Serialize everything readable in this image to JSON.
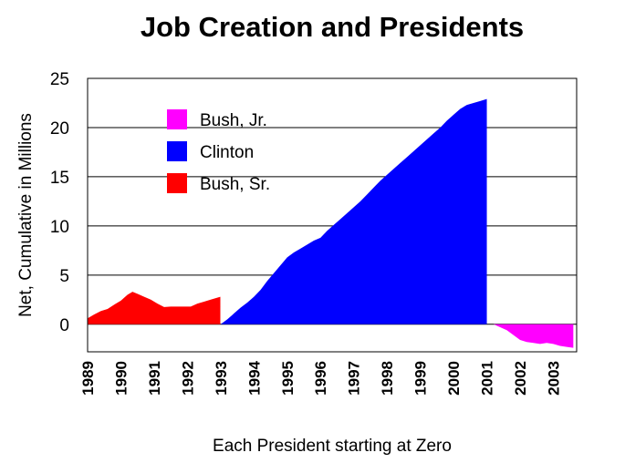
{
  "chart_data": {
    "type": "area",
    "title": "Job Creation and Presidents",
    "xlabel": "Each President starting at Zero",
    "ylabel": "Net, Cumulative in Millions",
    "ylim": [
      -2.8,
      25
    ],
    "xlim": [
      1989,
      2003.7
    ],
    "yticks": [
      0,
      5,
      10,
      15,
      20,
      25
    ],
    "xticks": [
      1989,
      1990,
      1991,
      1992,
      1993,
      1994,
      1995,
      1996,
      1997,
      1998,
      1999,
      2000,
      2001,
      2002,
      2003
    ],
    "grid": "horizontal",
    "legend_position": "top-left",
    "legend": [
      "Bush, Jr.",
      "Clinton",
      "Bush, Sr."
    ],
    "series": [
      {
        "name": "Bush, Sr.",
        "color": "#ff0000",
        "x": [
          1989.0,
          1989.2,
          1989.4,
          1989.6,
          1989.8,
          1990.0,
          1990.2,
          1990.35,
          1990.5,
          1990.7,
          1990.9,
          1991.1,
          1991.3,
          1991.5,
          1991.7,
          1991.9,
          1992.1,
          1992.3,
          1992.5,
          1992.7,
          1992.99
        ],
        "values": [
          0.6,
          1.0,
          1.35,
          1.55,
          2.0,
          2.4,
          3.0,
          3.3,
          3.1,
          2.8,
          2.5,
          2.1,
          1.75,
          1.8,
          1.8,
          1.8,
          1.8,
          2.1,
          2.3,
          2.5,
          2.8
        ]
      },
      {
        "name": "Clinton",
        "color": "#0000ff",
        "x": [
          1993.0,
          1993.2,
          1993.4,
          1993.6,
          1993.8,
          1994.0,
          1994.2,
          1994.4,
          1994.6,
          1994.8,
          1995.0,
          1995.2,
          1995.4,
          1995.6,
          1995.8,
          1996.0,
          1996.2,
          1996.4,
          1996.6,
          1996.8,
          1997.0,
          1997.2,
          1997.4,
          1997.6,
          1997.8,
          1998.0,
          1998.2,
          1998.4,
          1998.6,
          1998.8,
          1999.0,
          1999.2,
          1999.4,
          1999.6,
          1999.8,
          2000.0,
          2000.2,
          2000.4,
          2000.6,
          2000.8,
          2001.0
        ],
        "values": [
          0.0,
          0.5,
          1.1,
          1.7,
          2.2,
          2.8,
          3.5,
          4.4,
          5.2,
          6.0,
          6.8,
          7.3,
          7.7,
          8.1,
          8.5,
          8.8,
          9.5,
          10.1,
          10.7,
          11.3,
          11.9,
          12.5,
          13.2,
          13.9,
          14.6,
          15.2,
          15.8,
          16.4,
          17.0,
          17.6,
          18.2,
          18.8,
          19.4,
          20.0,
          20.7,
          21.3,
          21.9,
          22.3,
          22.5,
          22.7,
          22.9
        ]
      },
      {
        "name": "Bush, Jr.",
        "color": "#ff00ff",
        "x": [
          2001.0,
          2001.2,
          2001.4,
          2001.6,
          2001.8,
          2002.0,
          2002.2,
          2002.4,
          2002.6,
          2002.8,
          2003.0,
          2003.2,
          2003.4,
          2003.6
        ],
        "values": [
          0.0,
          0.0,
          -0.3,
          -0.6,
          -1.1,
          -1.6,
          -1.8,
          -1.9,
          -2.0,
          -1.9,
          -2.0,
          -2.2,
          -2.3,
          -2.4
        ]
      }
    ]
  }
}
